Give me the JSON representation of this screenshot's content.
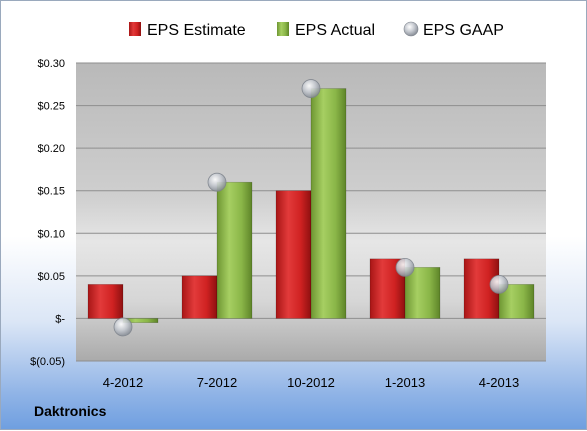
{
  "company": "Daktronics",
  "chart_data": {
    "type": "bar",
    "categories": [
      "4-2012",
      "7-2012",
      "10-2012",
      "1-2013",
      "4-2013"
    ],
    "series": [
      {
        "name": "EPS Estimate",
        "kind": "bar",
        "color": "#d42a2a",
        "values": [
          0.04,
          0.05,
          0.15,
          0.07,
          0.07
        ]
      },
      {
        "name": "EPS Actual",
        "kind": "bar",
        "color": "#8cb84a",
        "values": [
          -0.005,
          0.16,
          0.27,
          0.06,
          0.04
        ]
      },
      {
        "name": "EPS GAAP",
        "kind": "scatter",
        "color": "#b8bcc4",
        "values": [
          -0.01,
          0.16,
          0.27,
          0.06,
          0.04
        ]
      }
    ],
    "ylim": [
      -0.05,
      0.3
    ],
    "yticks": [
      -0.05,
      0,
      0.05,
      0.1,
      0.15,
      0.2,
      0.25,
      0.3
    ],
    "ytick_labels": [
      "$(0.05)",
      "$-",
      "$0.05",
      "$0.10",
      "$0.15",
      "$0.20",
      "$0.25",
      "$0.30"
    ],
    "grid": true,
    "legend": "top"
  }
}
